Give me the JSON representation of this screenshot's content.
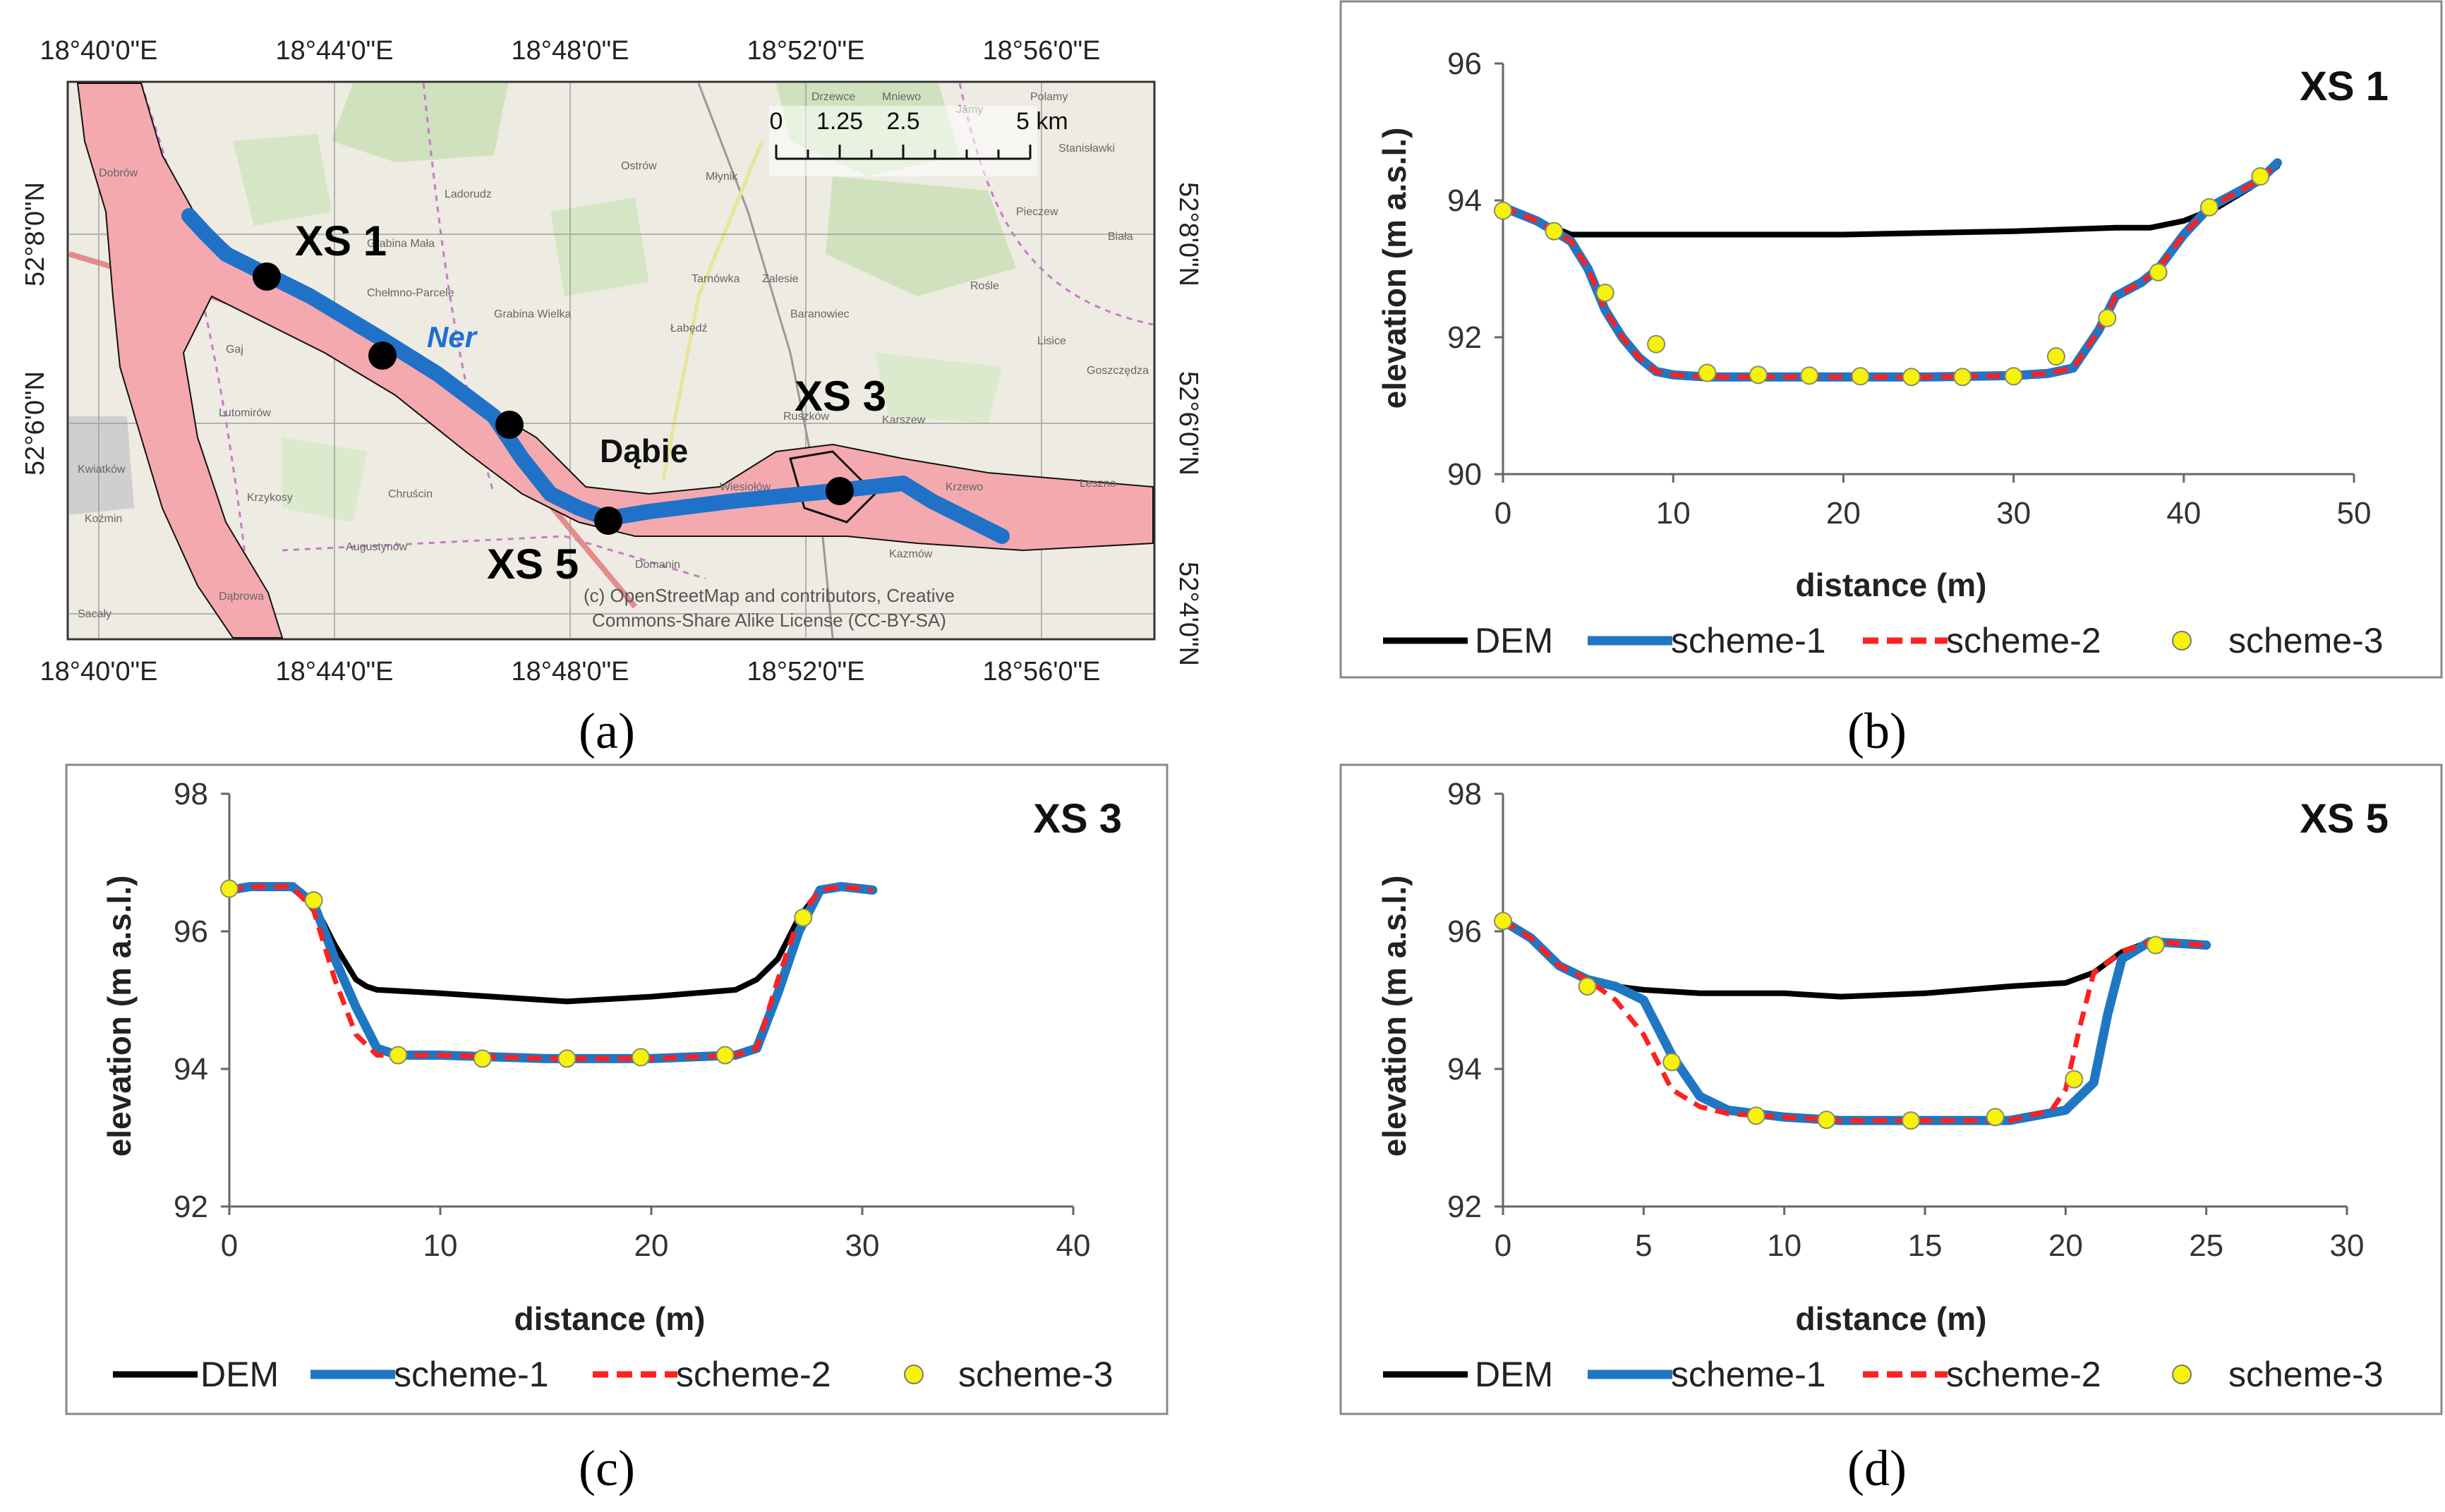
{
  "panel_labels": {
    "a": "(a)",
    "b": "(b)",
    "c": "(c)",
    "d": "(d)"
  },
  "map": {
    "lon_labels": [
      "18°40'0\"E",
      "18°44'0\"E",
      "18°48'0\"E",
      "18°52'0\"E",
      "18°56'0\"E"
    ],
    "lat_labels": [
      "52°8'0\"N",
      "52°6'0\"N",
      "52°4'0\"N"
    ],
    "scale": {
      "ticks": [
        "0",
        "1.25",
        "2.5",
        "5 km"
      ]
    },
    "river_label": "Ner",
    "town_label": "Dąbie",
    "xs_labels": {
      "xs1": "XS 1",
      "xs3": "XS 3",
      "xs5": "XS 5"
    },
    "attribution_line1": "(c) OpenStreetMap and contributors, Creative",
    "attribution_line2": "Commons-Share Alike License (CC-BY-SA)",
    "background_places": [
      "Dobrów",
      "Ladorudz",
      "Ostrów",
      "Grabina Mała",
      "Chełmno-Parcele",
      "Grabina Wielka",
      "Tarnówka",
      "Zalesie",
      "Łabędź",
      "Baranowiec",
      "Pieczew",
      "Rośle",
      "Lisice",
      "Goszczędza",
      "Gaj",
      "Lutomirów",
      "Kwiatków",
      "Koźmin",
      "Krzykosy",
      "Chruścin",
      "Augustynów",
      "Dąbrowa",
      "Sacały",
      "Karszew",
      "Krzewo",
      "Leszno",
      "Kazmów",
      "Domanin",
      "Wiesiołów",
      "Ruszków",
      "Młynik",
      "Stanisławki",
      "Drzewce",
      "Mniewo",
      "Jamy",
      "Polamy",
      "Biała"
    ],
    "colors": {
      "river": "#1f72c8",
      "flood": "#f4a9ae",
      "marker": "#000000"
    }
  },
  "legend": {
    "dem": "DEM",
    "scheme1": "scheme-1",
    "scheme2": "scheme-2",
    "scheme3": "scheme-3"
  },
  "series_colors": {
    "dem": "#000000",
    "scheme1": "#1f77c4",
    "scheme2": "#ff2020",
    "scheme3": "#f7f20a"
  },
  "chart_data": [
    {
      "type": "line",
      "id": "xs1",
      "title": "XS 1",
      "xlabel": "distance (m)",
      "ylabel": "elevation (m a.s.l.)",
      "xlim": [
        0,
        50
      ],
      "ylim": [
        90,
        96
      ],
      "xticks": [
        0,
        10,
        20,
        30,
        40,
        50
      ],
      "yticks": [
        90,
        92,
        94,
        96
      ],
      "series": [
        {
          "name": "DEM",
          "x": [
            0,
            2,
            4,
            10,
            20,
            30,
            36,
            38,
            40,
            42,
            44,
            45.5
          ],
          "y": [
            93.9,
            93.7,
            93.5,
            93.5,
            93.5,
            93.55,
            93.6,
            93.6,
            93.7,
            93.9,
            94.2,
            94.5
          ]
        },
        {
          "name": "scheme-1",
          "x": [
            0,
            2,
            4,
            5,
            6,
            7,
            8,
            9,
            10,
            12,
            15,
            20,
            25,
            30,
            32,
            33.5,
            35,
            36,
            37.5,
            38.5,
            40,
            41.5,
            43,
            44.5,
            45.5
          ],
          "y": [
            93.9,
            93.7,
            93.4,
            93.0,
            92.4,
            92.0,
            91.7,
            91.5,
            91.45,
            91.42,
            91.42,
            91.42,
            91.42,
            91.44,
            91.47,
            91.55,
            92.1,
            92.6,
            92.8,
            93.0,
            93.5,
            93.9,
            94.1,
            94.3,
            94.55
          ]
        },
        {
          "name": "scheme-2",
          "x": [
            0,
            2,
            4,
            5,
            6,
            7,
            8,
            9,
            10,
            12,
            15,
            20,
            25,
            30,
            32,
            33.5,
            35,
            36,
            37.5,
            38.5,
            40,
            41.5,
            43,
            44.5,
            45.5
          ],
          "y": [
            93.9,
            93.7,
            93.4,
            93.0,
            92.4,
            92.0,
            91.7,
            91.5,
            91.45,
            91.42,
            91.42,
            91.42,
            91.42,
            91.44,
            91.47,
            91.55,
            92.1,
            92.6,
            92.8,
            93.0,
            93.5,
            93.9,
            94.1,
            94.3,
            94.55
          ]
        },
        {
          "name": "scheme-3",
          "x": [
            0,
            3,
            6,
            9,
            12,
            15,
            18,
            21,
            24,
            27,
            30,
            32.5,
            35.5,
            38.5,
            41.5,
            44.5
          ],
          "y": [
            93.85,
            93.55,
            92.65,
            91.9,
            91.48,
            91.45,
            91.44,
            91.43,
            91.42,
            91.42,
            91.43,
            91.72,
            92.28,
            92.95,
            93.9,
            94.35
          ]
        }
      ]
    },
    {
      "type": "line",
      "id": "xs3",
      "title": "XS 3",
      "xlabel": "distance (m)",
      "ylabel": "elevation (m a.s.l.)",
      "xlim": [
        0,
        40
      ],
      "ylim": [
        92,
        98
      ],
      "xticks": [
        0,
        10,
        20,
        30,
        40
      ],
      "yticks": [
        92,
        94,
        96,
        98
      ],
      "series": [
        {
          "name": "DEM",
          "x": [
            0,
            1,
            3,
            4,
            5,
            6,
            6.5,
            7,
            10,
            15,
            16,
            20,
            24,
            25,
            26,
            27,
            28,
            29,
            30.5
          ],
          "y": [
            96.6,
            96.65,
            96.65,
            96.4,
            95.8,
            95.3,
            95.2,
            95.15,
            95.1,
            95.0,
            94.98,
            95.05,
            95.15,
            95.3,
            95.6,
            96.2,
            96.6,
            96.65,
            96.6
          ]
        },
        {
          "name": "scheme-1",
          "x": [
            0,
            1,
            3,
            4,
            5,
            6,
            7,
            8,
            10,
            15,
            20,
            24,
            25,
            26,
            27,
            28,
            29,
            30.5
          ],
          "y": [
            96.6,
            96.65,
            96.65,
            96.4,
            95.6,
            94.9,
            94.3,
            94.2,
            94.2,
            94.15,
            94.15,
            94.2,
            94.3,
            95.1,
            96.0,
            96.6,
            96.65,
            96.6
          ]
        },
        {
          "name": "scheme-2",
          "x": [
            0,
            1,
            3,
            4,
            5,
            6,
            7,
            8,
            10,
            15,
            20,
            24,
            25,
            26,
            27,
            28,
            29,
            30.5
          ],
          "y": [
            96.6,
            96.65,
            96.65,
            96.3,
            95.3,
            94.5,
            94.2,
            94.2,
            94.2,
            94.15,
            94.15,
            94.2,
            94.3,
            95.3,
            96.2,
            96.6,
            96.65,
            96.6
          ]
        },
        {
          "name": "scheme-3",
          "x": [
            0,
            4,
            8,
            12,
            16,
            19.5,
            23.5,
            27.2
          ],
          "y": [
            96.62,
            96.45,
            94.2,
            94.15,
            94.15,
            94.17,
            94.2,
            96.2
          ]
        }
      ]
    },
    {
      "type": "line",
      "id": "xs5",
      "title": "XS 5",
      "xlabel": "distance (m)",
      "ylabel": "elevation (m a.s.l.)",
      "xlim": [
        0,
        30
      ],
      "ylim": [
        92,
        98
      ],
      "xticks": [
        0,
        5,
        10,
        15,
        20,
        25,
        30
      ],
      "yticks": [
        92,
        94,
        96,
        98
      ],
      "series": [
        {
          "name": "DEM",
          "x": [
            0,
            1,
            2,
            3,
            4,
            5,
            7,
            10,
            12,
            15,
            18,
            20,
            21,
            22,
            23,
            25
          ],
          "y": [
            96.15,
            95.9,
            95.5,
            95.3,
            95.2,
            95.15,
            95.1,
            95.1,
            95.05,
            95.1,
            95.2,
            95.25,
            95.4,
            95.7,
            95.85,
            95.8
          ]
        },
        {
          "name": "scheme-1",
          "x": [
            0,
            1,
            2,
            3,
            4,
            5,
            6,
            7,
            8,
            10,
            12,
            15,
            18,
            20,
            21,
            21.5,
            22,
            23,
            25
          ],
          "y": [
            96.15,
            95.9,
            95.5,
            95.3,
            95.2,
            95.0,
            94.2,
            93.6,
            93.4,
            93.3,
            93.25,
            93.25,
            93.25,
            93.4,
            93.8,
            94.8,
            95.6,
            95.85,
            95.8
          ]
        },
        {
          "name": "scheme-2",
          "x": [
            0,
            1,
            2,
            3,
            4,
            5,
            6,
            7,
            8,
            10,
            12,
            15,
            18,
            19.5,
            20,
            20.5,
            21,
            22,
            23,
            25
          ],
          "y": [
            96.15,
            95.9,
            95.5,
            95.3,
            95.0,
            94.5,
            93.7,
            93.45,
            93.35,
            93.3,
            93.25,
            93.25,
            93.25,
            93.4,
            93.7,
            94.6,
            95.4,
            95.7,
            95.85,
            95.8
          ]
        },
        {
          "name": "scheme-3",
          "x": [
            0,
            3,
            6,
            9,
            11.5,
            14.5,
            17.5,
            20.3,
            23.2
          ],
          "y": [
            96.15,
            95.2,
            94.1,
            93.32,
            93.26,
            93.25,
            93.3,
            93.85,
            95.8
          ]
        }
      ]
    }
  ]
}
